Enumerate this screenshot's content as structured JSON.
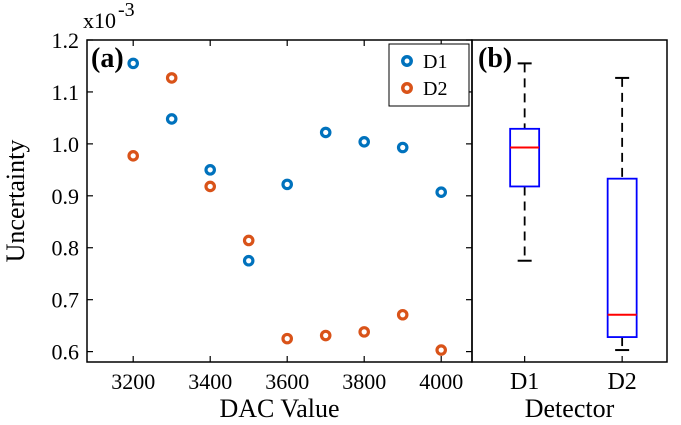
{
  "chart_data": [
    {
      "panel_label": "(a)",
      "type": "scatter",
      "xlabel": "DAC Value",
      "ylabel": "Uncertainty",
      "y_multiplier": "x10",
      "y_multiplier_exp": "-3",
      "xlim": [
        3080,
        4080
      ],
      "ylim": [
        0.58,
        1.2
      ],
      "xticks": [
        3200,
        3400,
        3600,
        3800,
        4000
      ],
      "yticks": [
        0.6,
        0.7,
        0.8,
        0.9,
        1.0,
        1.1,
        1.2
      ],
      "ytick_labels": [
        "0.6",
        "0.7",
        "0.8",
        "0.9",
        "1.0",
        "1.1",
        "1.2"
      ],
      "grid": false,
      "legend_position": "top-right",
      "series": [
        {
          "name": "D1",
          "color": "#0072BD",
          "x": [
            3200,
            3300,
            3400,
            3500,
            3600,
            3700,
            3800,
            3900,
            4000
          ],
          "y": [
            1.155,
            1.048,
            0.95,
            0.775,
            0.922,
            1.022,
            1.004,
            0.993,
            0.907
          ]
        },
        {
          "name": "D2",
          "color": "#D95319",
          "x": [
            3200,
            3300,
            3400,
            3500,
            3600,
            3700,
            3800,
            3900,
            4000
          ],
          "y": [
            0.977,
            1.127,
            0.918,
            0.814,
            0.625,
            0.631,
            0.638,
            0.671,
            0.603
          ]
        }
      ]
    },
    {
      "panel_label": "(b)",
      "type": "box",
      "xlabel": "Detector",
      "categories": [
        "D1",
        "D2"
      ],
      "ylim": [
        0.58,
        1.2
      ],
      "box_color": "#0000FF",
      "median_color": "#FF0000",
      "boxes": [
        {
          "category": "D1",
          "min": 0.775,
          "q1": 0.918,
          "median": 0.993,
          "q3": 1.029,
          "max": 1.155
        },
        {
          "category": "D2",
          "min": 0.603,
          "q1": 0.628,
          "median": 0.671,
          "q3": 0.933,
          "max": 1.127
        }
      ]
    }
  ]
}
